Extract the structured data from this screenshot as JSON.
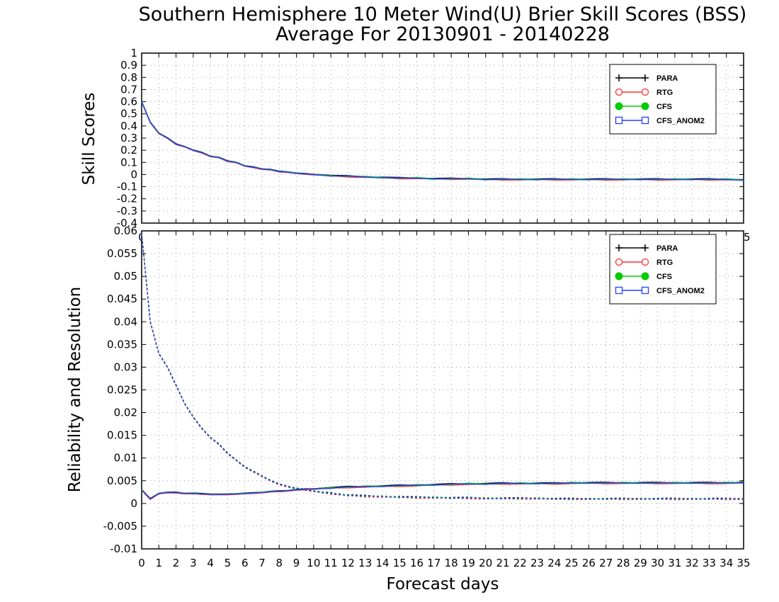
{
  "chart_data": [
    {
      "type": "line",
      "title": "Southern Hemisphere 10 Meter Wind(U) Brier Skill Scores (BSS)",
      "subtitle": "Average For 20130901 - 20140228",
      "xlabel": "",
      "ylabel": "Skill Scores",
      "xlim": [
        0,
        35
      ],
      "ylim": [
        -0.4,
        1
      ],
      "yticks": [
        "1",
        "0.9",
        "0.8",
        "0.7",
        "0.6",
        "0.5",
        "0.4",
        "0.3",
        "0.2",
        "0.1",
        "0",
        "-0.1",
        "-0.2",
        "-0.3",
        "-0.4"
      ],
      "xticks": [
        "0",
        "1",
        "2",
        "3",
        "4",
        "5",
        "6",
        "7",
        "8",
        "9",
        "10",
        "11",
        "12",
        "13",
        "14",
        "15",
        "16",
        "17",
        "18",
        "19",
        "20",
        "21",
        "22",
        "23",
        "24",
        "25",
        "26",
        "27",
        "28",
        "29",
        "30",
        "31",
        "32",
        "33",
        "34",
        "35"
      ],
      "grid": true,
      "legend_position": "top-right",
      "series": [
        {
          "name": "PARA",
          "color": "#000000",
          "marker": "plus"
        },
        {
          "name": "RTG",
          "color": "#ff3030",
          "marker": "open-circle"
        },
        {
          "name": "CFS",
          "color": "#00cc00",
          "marker": "filled-circle"
        },
        {
          "name": "CFS_ANOM2",
          "color": "#2040ff",
          "marker": "open-square"
        }
      ],
      "bss": {
        "x": [
          0,
          0.5,
          1,
          1.5,
          2,
          2.5,
          3,
          3.5,
          4,
          4.5,
          5,
          5.5,
          6,
          6.5,
          7,
          7.5,
          8,
          8.5,
          9,
          9.5,
          10,
          11,
          12,
          13,
          14,
          15,
          16,
          17,
          18,
          19,
          20,
          21,
          22,
          23,
          24,
          25,
          26,
          27,
          28,
          29,
          30,
          31,
          32,
          33,
          34,
          35
        ],
        "y": [
          0.6,
          0.43,
          0.34,
          0.3,
          0.25,
          0.23,
          0.2,
          0.18,
          0.15,
          0.14,
          0.11,
          0.1,
          0.07,
          0.06,
          0.045,
          0.04,
          0.025,
          0.02,
          0.01,
          0.005,
          0,
          -0.01,
          -0.015,
          -0.02,
          -0.025,
          -0.03,
          -0.03,
          -0.035,
          -0.035,
          -0.035,
          -0.04,
          -0.04,
          -0.04,
          -0.04,
          -0.04,
          -0.04,
          -0.04,
          -0.04,
          -0.04,
          -0.04,
          -0.04,
          -0.04,
          -0.04,
          -0.04,
          -0.04,
          -0.045
        ]
      }
    },
    {
      "type": "line",
      "title": "",
      "xlabel": "Forecast days",
      "ylabel": "Reliability and Resolution",
      "xlim": [
        0,
        35
      ],
      "ylim": [
        -0.01,
        0.06
      ],
      "yticks": [
        "0.06",
        "0.055",
        "0.05",
        "0.045",
        "0.04",
        "0.035",
        "0.03",
        "0.025",
        "0.02",
        "0.015",
        "0.01",
        "0.005",
        "0",
        "-0.005",
        "-0.01"
      ],
      "xticks": [
        "0",
        "1",
        "2",
        "3",
        "4",
        "5",
        "6",
        "7",
        "8",
        "9",
        "10",
        "11",
        "12",
        "13",
        "14",
        "15",
        "16",
        "17",
        "18",
        "19",
        "20",
        "21",
        "22",
        "23",
        "24",
        "25",
        "26",
        "27",
        "28",
        "29",
        "30",
        "31",
        "32",
        "33",
        "34",
        "35"
      ],
      "grid": true,
      "legend_position": "top-right",
      "series": [
        {
          "name": "PARA",
          "color": "#000000",
          "marker": "plus"
        },
        {
          "name": "RTG",
          "color": "#ff3030",
          "marker": "open-circle"
        },
        {
          "name": "CFS",
          "color": "#00cc00",
          "marker": "filled-circle"
        },
        {
          "name": "CFS_ANOM2",
          "color": "#2040ff",
          "marker": "open-square"
        }
      ],
      "reliability": {
        "x": [
          0,
          0.5,
          1,
          1.5,
          2,
          2.5,
          3,
          3.5,
          4,
          4.5,
          5,
          5.5,
          6,
          6.5,
          7,
          7.5,
          8,
          8.5,
          9,
          9.5,
          10,
          10.5,
          11,
          11.5,
          12,
          13,
          14,
          15,
          16,
          17,
          18,
          19,
          20,
          21,
          22,
          23,
          24,
          25,
          26,
          27,
          28,
          29,
          30,
          31,
          32,
          33,
          34,
          35
        ],
        "y": [
          0.0595,
          0.04,
          0.033,
          0.03,
          0.026,
          0.022,
          0.019,
          0.0165,
          0.0145,
          0.013,
          0.011,
          0.0095,
          0.008,
          0.007,
          0.006,
          0.005,
          0.0042,
          0.0037,
          0.0033,
          0.003,
          0.0027,
          0.0024,
          0.0022,
          0.002,
          0.0018,
          0.0016,
          0.0015,
          0.0014,
          0.0013,
          0.0013,
          0.0012,
          0.0012,
          0.0011,
          0.0011,
          0.0011,
          0.0011,
          0.001,
          0.001,
          0.001,
          0.001,
          0.001,
          0.001,
          0.001,
          0.001,
          0.001,
          0.001,
          0.001,
          0.001
        ]
      },
      "resolution": {
        "x": [
          0,
          0.5,
          1,
          1.5,
          2,
          2.5,
          3,
          3.5,
          4,
          4.5,
          5,
          5.5,
          6,
          6.5,
          7,
          7.5,
          8,
          8.5,
          9,
          9.5,
          10,
          11,
          12,
          13,
          14,
          15,
          16,
          17,
          18,
          19,
          20,
          21,
          22,
          23,
          24,
          25,
          26,
          27,
          28,
          29,
          30,
          31,
          32,
          33,
          34,
          35
        ],
        "y": [
          0.003,
          0.001,
          0.0022,
          0.0024,
          0.0024,
          0.0022,
          0.0022,
          0.0021,
          0.002,
          0.002,
          0.002,
          0.0021,
          0.0022,
          0.0023,
          0.0024,
          0.0026,
          0.0027,
          0.0028,
          0.003,
          0.0031,
          0.0032,
          0.0034,
          0.0036,
          0.0037,
          0.0038,
          0.0039,
          0.004,
          0.0041,
          0.0042,
          0.0043,
          0.0043,
          0.0044,
          0.0044,
          0.0044,
          0.0044,
          0.0045,
          0.0045,
          0.0045,
          0.0045,
          0.0045,
          0.0045,
          0.0045,
          0.0045,
          0.0045,
          0.0045,
          0.0046
        ]
      }
    }
  ]
}
